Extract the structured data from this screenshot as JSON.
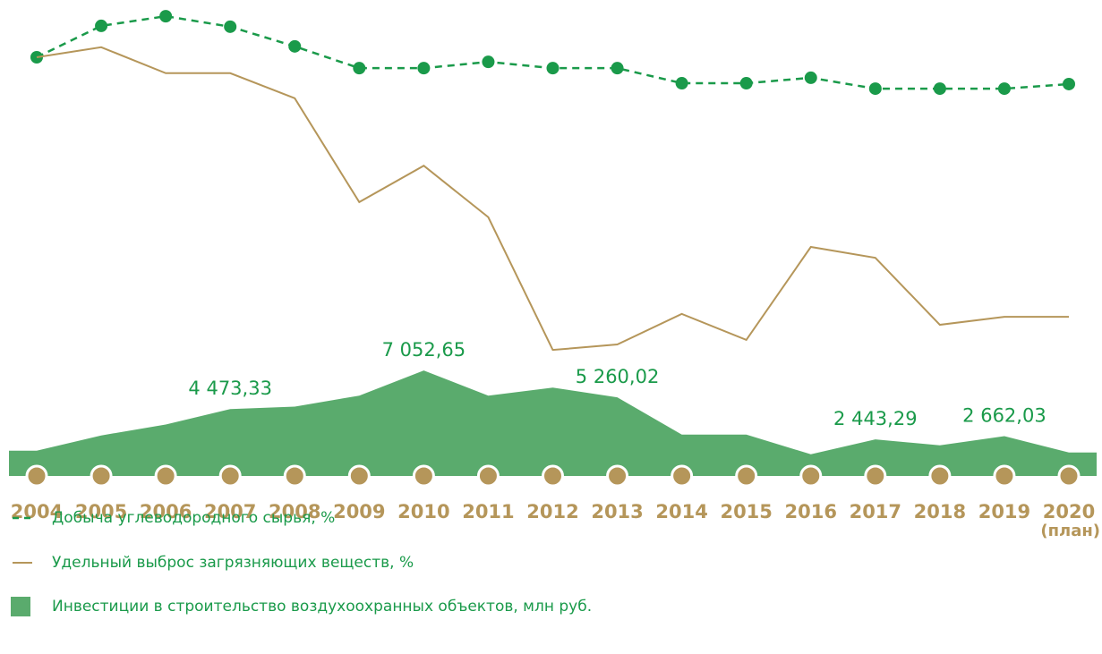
{
  "chart_data": {
    "type": "line-area",
    "categories": [
      "2004",
      "2005",
      "2006",
      "2007",
      "2008",
      "2009",
      "2010",
      "2011",
      "2012",
      "2013",
      "2014",
      "2015",
      "2016",
      "2017",
      "2018",
      "2019",
      "2020"
    ],
    "category_note": "(план)",
    "ylim": [
      0,
      100
    ],
    "y2lim": [
      0,
      28000
    ],
    "series": [
      {
        "name": "Добыча углеводородного сырья, %",
        "type": "line",
        "style": "dashed",
        "markers": true,
        "color": "#1a9a4a",
        "values": [
          100,
          107.5,
          109.8,
          107.3,
          102.6,
          97.4,
          97.4,
          98.9,
          97.4,
          97.4,
          93.8,
          93.8,
          95.1,
          92.5,
          92.5,
          92.5,
          93.6
        ]
      },
      {
        "name": "Удельный выброс загрязняющих веществ, %",
        "type": "line",
        "style": "solid",
        "markers": false,
        "color": "#b5965a",
        "values": [
          100,
          102.4,
          96.2,
          96.2,
          90.2,
          65.4,
          74.1,
          61.8,
          30.1,
          31.4,
          38.7,
          32.5,
          54.7,
          52.1,
          36.1,
          38.0,
          38.0
        ]
      },
      {
        "name": "Инвестиции в строительство воздухоохранных объектов, млн руб.",
        "type": "area",
        "axis": "y2",
        "color": "#5aab6d",
        "values": [
          1690,
          2710,
          3440,
          4473.33,
          4640,
          5370,
          7052.65,
          5370,
          5910,
          5260.02,
          2770,
          2770,
          1450,
          2443.29,
          2050,
          2662.03,
          1570
        ],
        "value_labels": [
          null,
          null,
          null,
          "4 473,33",
          null,
          null,
          "7 052,65",
          null,
          null,
          "5 260,02",
          null,
          null,
          null,
          "2 443,29",
          null,
          "2 662,03",
          null
        ]
      }
    ]
  }
}
